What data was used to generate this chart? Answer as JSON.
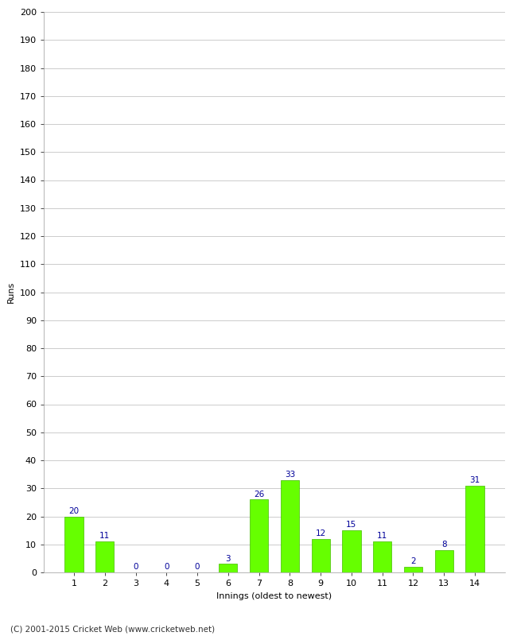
{
  "innings": [
    1,
    2,
    3,
    4,
    5,
    6,
    7,
    8,
    9,
    10,
    11,
    12,
    13,
    14
  ],
  "runs": [
    20,
    11,
    0,
    0,
    0,
    3,
    26,
    33,
    12,
    15,
    11,
    2,
    8,
    31
  ],
  "bar_color": "#66ff00",
  "bar_edge_color": "#44bb00",
  "label_color": "#000099",
  "xlabel": "Innings (oldest to newest)",
  "ylabel": "Runs",
  "ylim": [
    0,
    200
  ],
  "ytick_step": 10,
  "footer": "(C) 2001-2015 Cricket Web (www.cricketweb.net)",
  "background_color": "#ffffff",
  "grid_color": "#cccccc",
  "label_fontsize": 7.5,
  "axis_fontsize": 8,
  "footer_fontsize": 7.5
}
